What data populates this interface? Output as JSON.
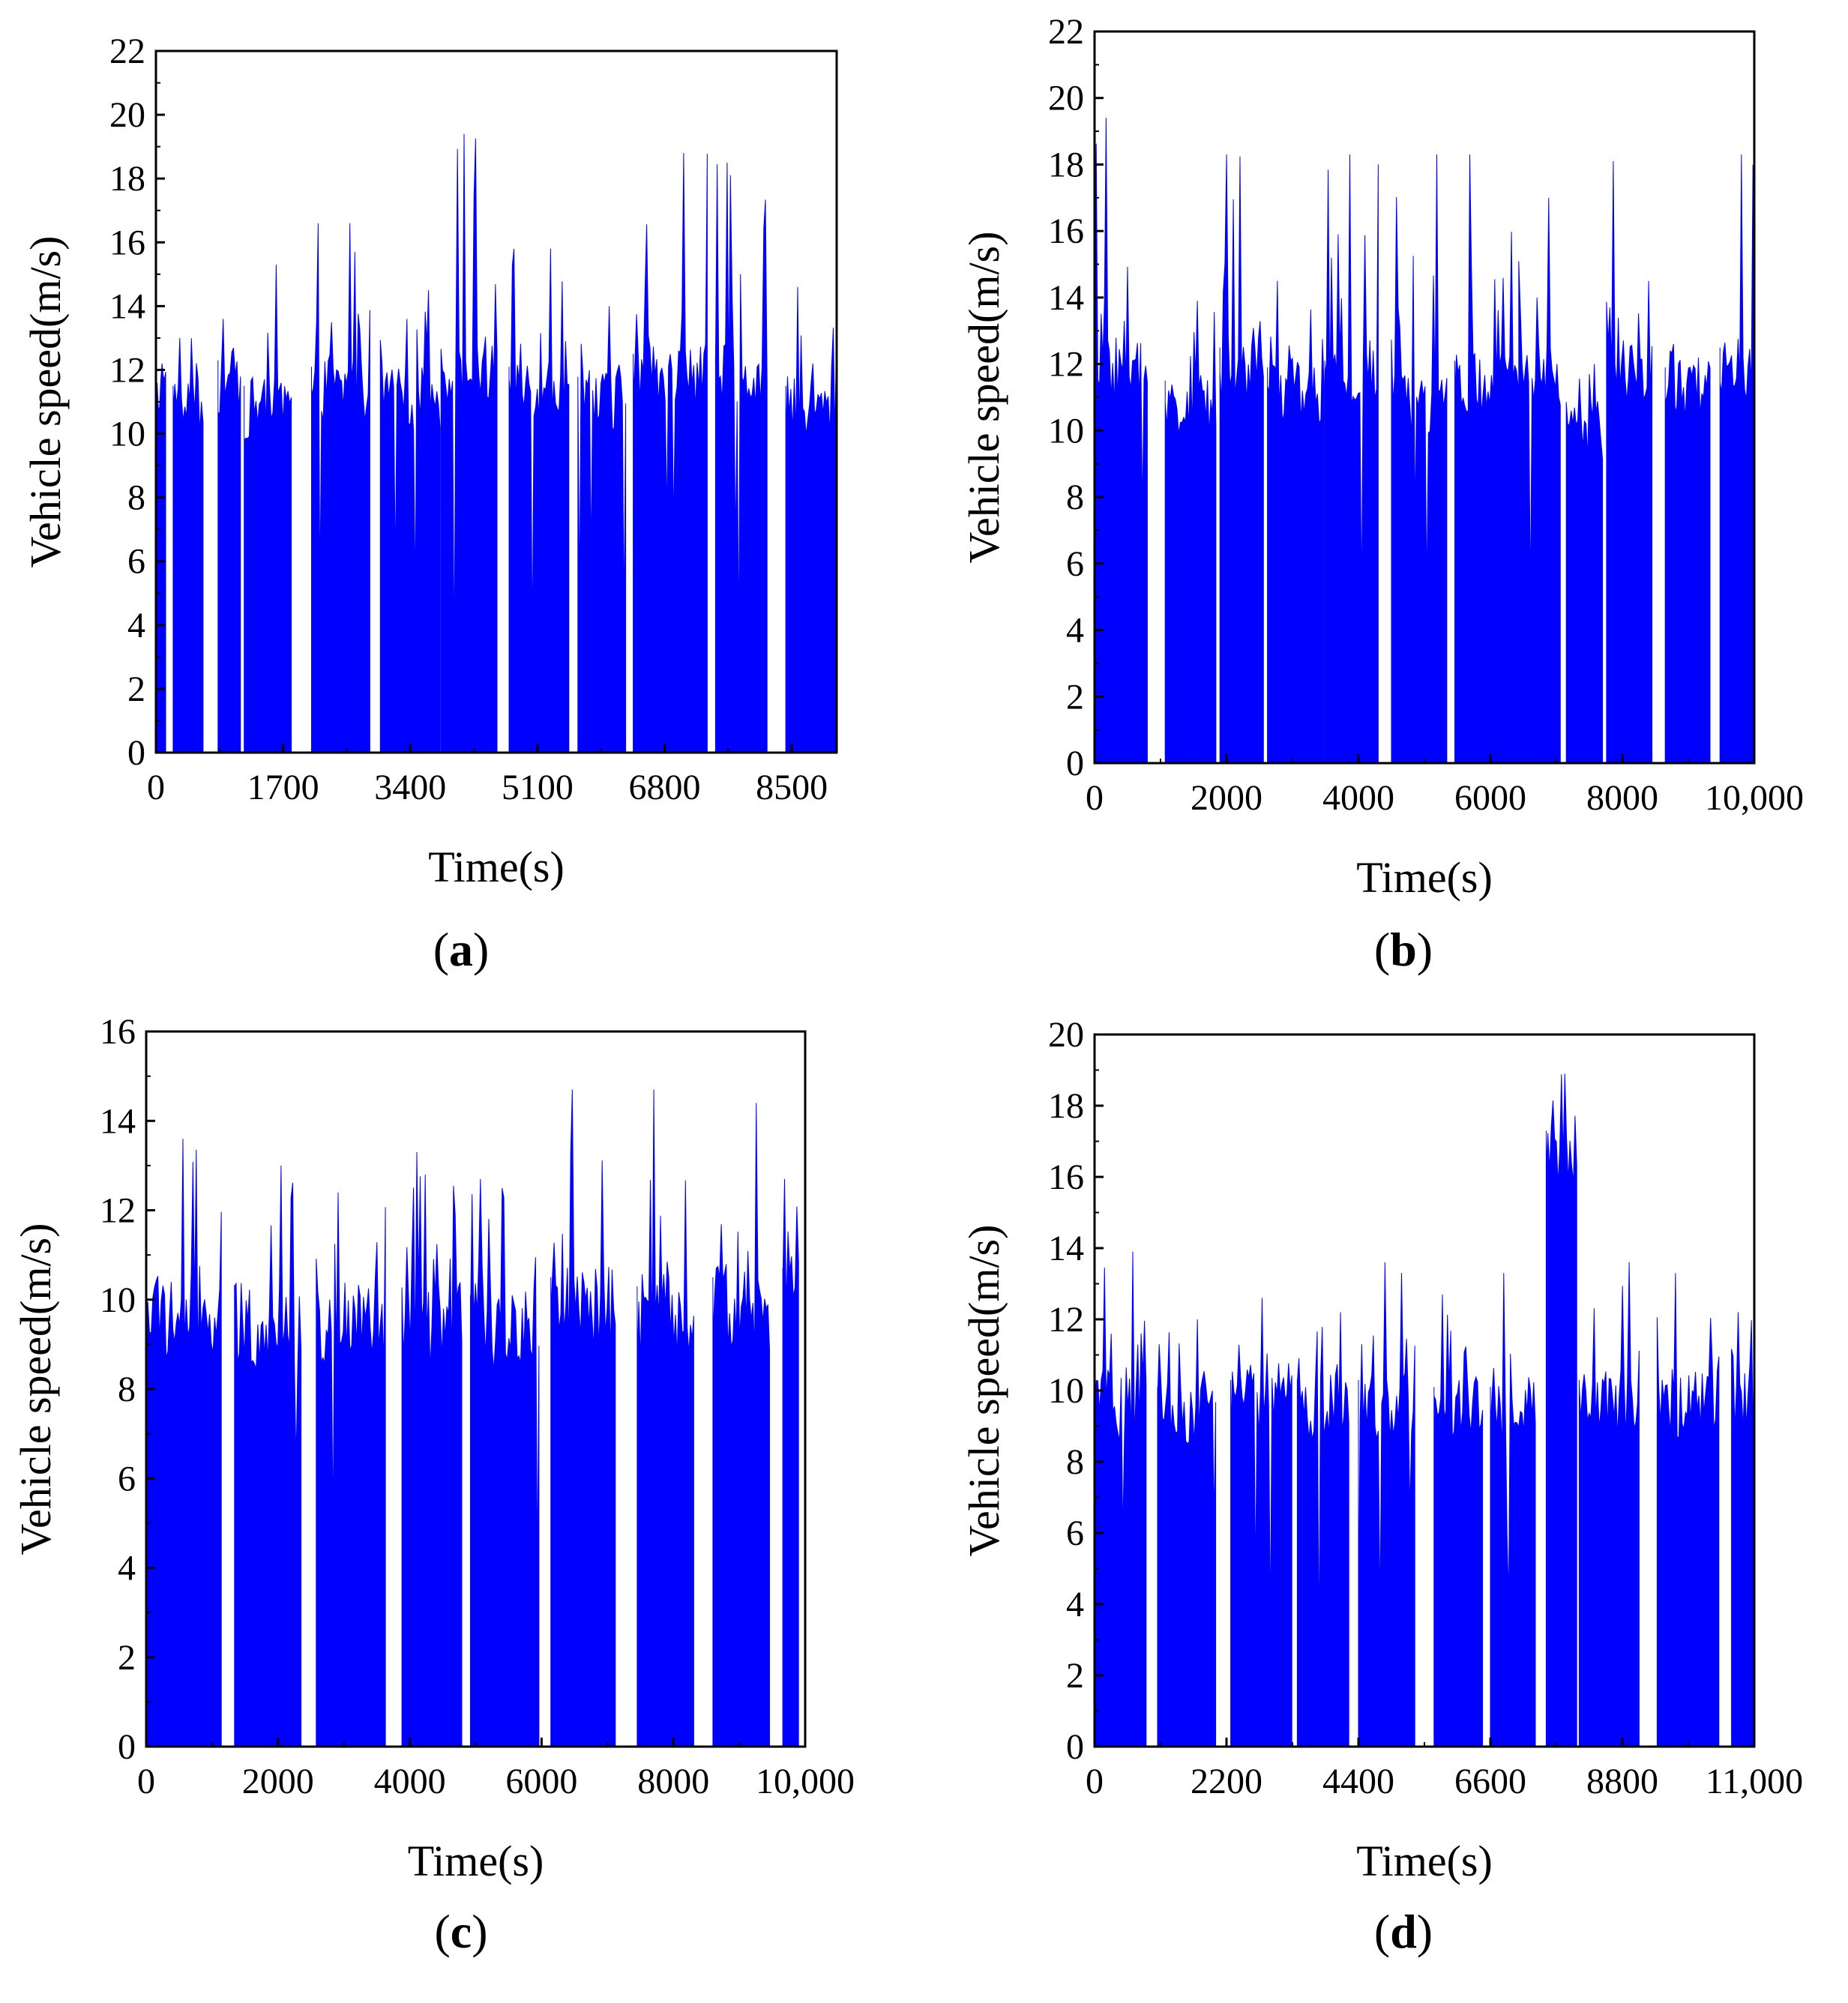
{
  "chart_data": [
    {
      "type": "area",
      "panel": "a",
      "panel_label": "a",
      "xlabel": "Time(s)",
      "ylabel": "Vehicle speed(m/s)",
      "xlim": [
        0,
        9100
      ],
      "ylim": [
        0,
        22
      ],
      "xticks": [
        0,
        1700,
        3400,
        5100,
        6800,
        8500
      ],
      "xtick_labels": [
        "0",
        "1700",
        "3400",
        "5100",
        "6800",
        "8500"
      ],
      "yticks": [
        0,
        2,
        4,
        6,
        8,
        10,
        12,
        14,
        16,
        18,
        20,
        22
      ],
      "ytick_labels": [
        "0",
        "2",
        "4",
        "6",
        "8",
        "10",
        "12",
        "14",
        "16",
        "18",
        "20",
        "22"
      ],
      "series_color": "#0000ff",
      "segments": [
        {
          "start": 0,
          "end": 130,
          "base": 11.5,
          "peak": 12.2
        },
        {
          "start": 230,
          "end": 630,
          "base": 11.0,
          "peak": 13.0
        },
        {
          "start": 830,
          "end": 1130,
          "base": 11.8,
          "peak": 13.6
        },
        {
          "start": 1180,
          "end": 1810,
          "base": 11.0,
          "peak": 15.3
        },
        {
          "start": 2080,
          "end": 2860,
          "base": 11.6,
          "peak": 16.6
        },
        {
          "start": 3000,
          "end": 3800,
          "base": 11.3,
          "peak": 14.5
        },
        {
          "start": 3810,
          "end": 4560,
          "base": 12.0,
          "peak": 19.4
        },
        {
          "start": 4720,
          "end": 5520,
          "base": 11.6,
          "peak": 15.8
        },
        {
          "start": 5640,
          "end": 6280,
          "base": 11.2,
          "peak": 14.0
        },
        {
          "start": 6380,
          "end": 7370,
          "base": 12.0,
          "peak": 18.8
        },
        {
          "start": 7480,
          "end": 8170,
          "base": 12.0,
          "peak": 18.5
        },
        {
          "start": 8420,
          "end": 9100,
          "base": 11.0,
          "peak": 14.6
        }
      ]
    },
    {
      "type": "area",
      "panel": "b",
      "panel_label": "b",
      "xlabel": "Time(s)",
      "ylabel": "Vehicle speed(m/s)",
      "xlim": [
        0,
        10000
      ],
      "ylim": [
        0,
        22
      ],
      "xticks": [
        0,
        2000,
        4000,
        6000,
        8000,
        10000
      ],
      "xtick_labels": [
        "0",
        "2000",
        "4000",
        "6000",
        "8000",
        "10,000"
      ],
      "yticks": [
        0,
        2,
        4,
        6,
        8,
        10,
        12,
        14,
        16,
        18,
        20,
        22
      ],
      "ytick_labels": [
        "0",
        "2",
        "4",
        "6",
        "8",
        "10",
        "12",
        "14",
        "16",
        "18",
        "20",
        "22"
      ],
      "series_color": "#0000ff",
      "segments": [
        {
          "start": 0,
          "end": 800,
          "base": 12.0,
          "peak": 19.4
        },
        {
          "start": 1070,
          "end": 1840,
          "base": 11.0,
          "peak": 13.9
        },
        {
          "start": 1900,
          "end": 2560,
          "base": 12.0,
          "peak": 18.3
        },
        {
          "start": 2620,
          "end": 3480,
          "base": 11.4,
          "peak": 14.5
        },
        {
          "start": 3490,
          "end": 4300,
          "base": 11.6,
          "peak": 18.3
        },
        {
          "start": 4500,
          "end": 5340,
          "base": 11.0,
          "peak": 18.3
        },
        {
          "start": 5460,
          "end": 6420,
          "base": 11.6,
          "peak": 18.3
        },
        {
          "start": 6430,
          "end": 7060,
          "base": 11.8,
          "peak": 17.0
        },
        {
          "start": 7150,
          "end": 7700,
          "base": 10.2,
          "peak": 12.0
        },
        {
          "start": 7760,
          "end": 8450,
          "base": 12.0,
          "peak": 18.1
        },
        {
          "start": 8650,
          "end": 9330,
          "base": 11.4,
          "peak": 12.6
        },
        {
          "start": 9480,
          "end": 9980,
          "base": 12.0,
          "peak": 18.3
        }
      ]
    },
    {
      "type": "area",
      "panel": "c",
      "panel_label": "c",
      "xlabel": "Time(s)",
      "ylabel": "Vehicle speed(m/s)",
      "xlim": [
        0,
        10000
      ],
      "ylim": [
        0,
        16
      ],
      "xticks": [
        0,
        2000,
        4000,
        6000,
        8000,
        10000
      ],
      "xtick_labels": [
        "0",
        "2000",
        "4000",
        "6000",
        "8000",
        "10,000"
      ],
      "yticks": [
        0,
        2,
        4,
        6,
        8,
        10,
        12,
        14,
        16
      ],
      "ytick_labels": [
        "0",
        "2",
        "4",
        "6",
        "8",
        "10",
        "12",
        "14",
        "16"
      ],
      "series_color": "#0000ff",
      "segments": [
        {
          "start": 0,
          "end": 1140,
          "base": 9.8,
          "peak": 13.6
        },
        {
          "start": 1340,
          "end": 2350,
          "base": 9.6,
          "peak": 13.0
        },
        {
          "start": 2580,
          "end": 3630,
          "base": 9.6,
          "peak": 12.4
        },
        {
          "start": 3880,
          "end": 4790,
          "base": 9.6,
          "peak": 13.3
        },
        {
          "start": 4920,
          "end": 5960,
          "base": 9.6,
          "peak": 12.7
        },
        {
          "start": 6140,
          "end": 7120,
          "base": 10.0,
          "peak": 14.7
        },
        {
          "start": 7450,
          "end": 8310,
          "base": 9.8,
          "peak": 14.7
        },
        {
          "start": 8600,
          "end": 9460,
          "base": 10.0,
          "peak": 14.4
        },
        {
          "start": 9660,
          "end": 9900,
          "base": 10.2,
          "peak": 12.7
        }
      ]
    },
    {
      "type": "area",
      "panel": "d",
      "panel_label": "d",
      "xlabel": "Time(s)",
      "ylabel": "Vehicle speed(m/s)",
      "xlim": [
        0,
        11000
      ],
      "ylim": [
        0,
        20
      ],
      "xticks": [
        0,
        2200,
        4400,
        6600,
        8800,
        11000
      ],
      "xtick_labels": [
        "0",
        "2200",
        "4400",
        "6600",
        "8800",
        "11,000"
      ],
      "yticks": [
        0,
        2,
        4,
        6,
        8,
        10,
        12,
        14,
        16,
        18,
        20
      ],
      "ytick_labels": [
        "0",
        "2",
        "4",
        "6",
        "8",
        "10",
        "12",
        "14",
        "16",
        "18",
        "20"
      ],
      "series_color": "#0000ff",
      "segments": [
        {
          "start": 0,
          "end": 860,
          "base": 9.8,
          "peak": 13.9
        },
        {
          "start": 1050,
          "end": 2020,
          "base": 9.6,
          "peak": 12.0
        },
        {
          "start": 2270,
          "end": 3290,
          "base": 9.8,
          "peak": 12.6
        },
        {
          "start": 3380,
          "end": 4240,
          "base": 9.8,
          "peak": 12.2
        },
        {
          "start": 4400,
          "end": 5340,
          "base": 9.8,
          "peak": 13.6
        },
        {
          "start": 5660,
          "end": 6470,
          "base": 9.6,
          "peak": 12.7
        },
        {
          "start": 6600,
          "end": 7350,
          "base": 9.6,
          "peak": 13.3
        },
        {
          "start": 7530,
          "end": 8040,
          "base": 16.8,
          "peak": 18.9
        },
        {
          "start": 8080,
          "end": 9080,
          "base": 9.8,
          "peak": 13.6
        },
        {
          "start": 9380,
          "end": 10410,
          "base": 9.8,
          "peak": 13.3
        },
        {
          "start": 10620,
          "end": 10980,
          "base": 10.0,
          "peak": 12.2
        }
      ]
    }
  ]
}
